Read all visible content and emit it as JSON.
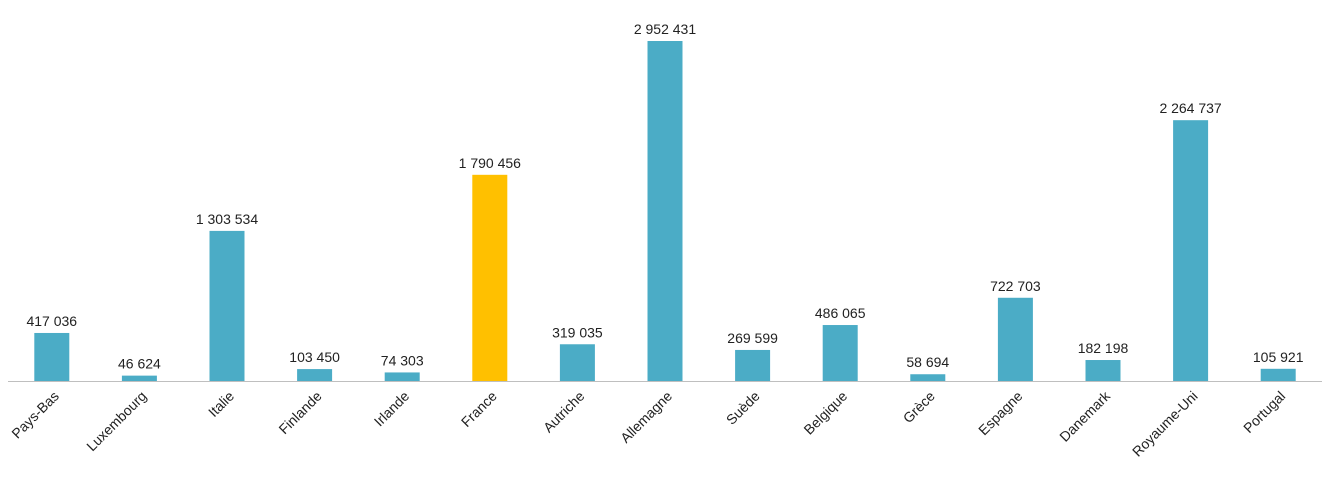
{
  "chart_data": {
    "type": "bar",
    "categories": [
      "Pays-Bas",
      "Luxembourg",
      "Italie",
      "Finlande",
      "Irlande",
      "France",
      "Autriche",
      "Allemagne",
      "Suède",
      "Belgique",
      "Grèce",
      "Espagne",
      "Danemark",
      "Royaume-Uni",
      "Portugal"
    ],
    "values": [
      417036,
      46624,
      1303534,
      103450,
      74303,
      1790456,
      319035,
      2952431,
      269599,
      486065,
      58694,
      722703,
      182198,
      2264737,
      105921
    ],
    "value_labels": [
      "417 036",
      "46 624",
      "1 303 534",
      "103 450",
      "74 303",
      "1 790 456",
      "319 035",
      "2 952 431",
      "269 599",
      "486 065",
      "58 694",
      "722 703",
      "182 198",
      "2 264 737",
      "105 921"
    ],
    "highlight_category": "France",
    "colors": {
      "default": "#4BACC6",
      "highlight": "#FFC000",
      "axis": "#BFBFBF"
    },
    "ylim": [
      0,
      2952431
    ],
    "grid": false,
    "legend": "none",
    "title": "",
    "xlabel": "",
    "ylabel": ""
  }
}
